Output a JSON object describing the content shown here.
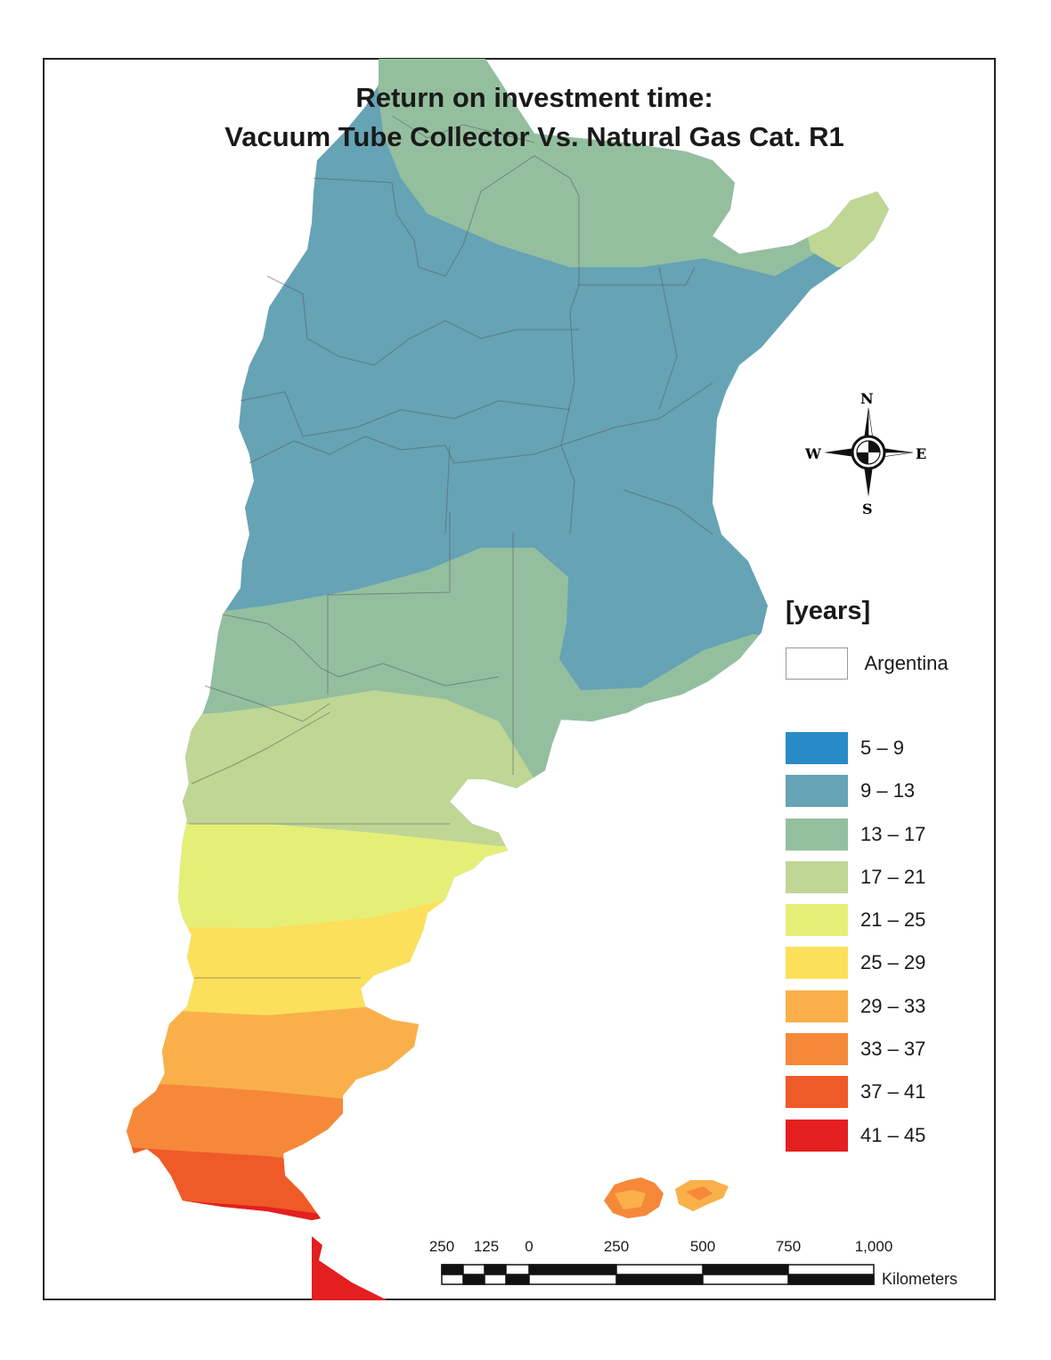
{
  "title": {
    "line1": "Return on investment time:",
    "line2": "Vacuum Tube Collector Vs. Natural Gas Cat. R1"
  },
  "legend": {
    "heading": "[years]",
    "country_label": "Argentina",
    "classes": [
      {
        "label": "5 – 9",
        "color": "#2a8ac8"
      },
      {
        "label": "9 – 13",
        "color": "#65a3b5"
      },
      {
        "label": "13 – 17",
        "color": "#94bf9f"
      },
      {
        "label": "17 – 21",
        "color": "#bfd694"
      },
      {
        "label": "21 – 25",
        "color": "#e5ef77"
      },
      {
        "label": "25 – 29",
        "color": "#fce05b"
      },
      {
        "label": "29 – 33",
        "color": "#fab04a"
      },
      {
        "label": "33 – 37",
        "color": "#f6883a"
      },
      {
        "label": "37 – 41",
        "color": "#ef5a29"
      },
      {
        "label": "41 – 45",
        "color": "#e31f1f"
      }
    ]
  },
  "compass": {
    "n": "N",
    "s": "S",
    "e": "E",
    "w": "W"
  },
  "scale_bar": {
    "ticks": [
      "250",
      "125",
      "0",
      "250",
      "500",
      "750",
      "1,000"
    ],
    "unit": "Kilometers"
  }
}
